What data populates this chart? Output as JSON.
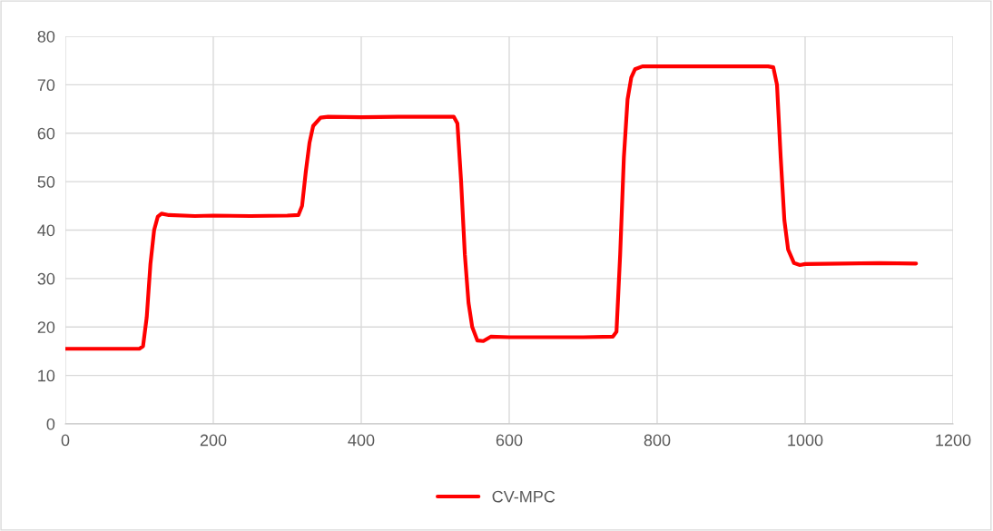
{
  "chart_data": {
    "type": "line",
    "x": [
      0,
      100,
      105,
      110,
      115,
      120,
      125,
      130,
      140,
      175,
      200,
      250,
      300,
      315,
      320,
      325,
      330,
      335,
      345,
      355,
      400,
      450,
      500,
      525,
      530,
      535,
      540,
      545,
      550,
      557,
      565,
      575,
      600,
      650,
      700,
      740,
      745,
      750,
      755,
      760,
      765,
      770,
      780,
      800,
      850,
      900,
      950,
      957,
      962,
      967,
      972,
      977,
      985,
      993,
      1000,
      1050,
      1100,
      1150
    ],
    "series": [
      {
        "name": "CV-MPC",
        "color": "#ff0000",
        "values": [
          15.5,
          15.5,
          16,
          22,
          33,
          40,
          42.8,
          43.4,
          43.1,
          42.9,
          43,
          42.9,
          43,
          43.1,
          45,
          52,
          58,
          61.5,
          63.2,
          63.4,
          63.3,
          63.4,
          63.4,
          63.4,
          62,
          50,
          35,
          25,
          20,
          17.2,
          17.1,
          18,
          17.9,
          17.9,
          17.9,
          18,
          19,
          35,
          55,
          67,
          71.5,
          73.2,
          73.8,
          73.8,
          73.8,
          73.8,
          73.8,
          73.6,
          70,
          55,
          42,
          36,
          33.2,
          32.8,
          33,
          33.1,
          33.2,
          33.1
        ]
      }
    ],
    "xlim": [
      0,
      1200
    ],
    "xticks": [
      0,
      200,
      400,
      600,
      800,
      1000,
      1200
    ],
    "ylim": [
      0,
      80
    ],
    "yticks": [
      0,
      10,
      20,
      30,
      40,
      50,
      60,
      70,
      80
    ],
    "grid": true,
    "legend": "bottom",
    "marker": "none",
    "line_style": "solid"
  }
}
